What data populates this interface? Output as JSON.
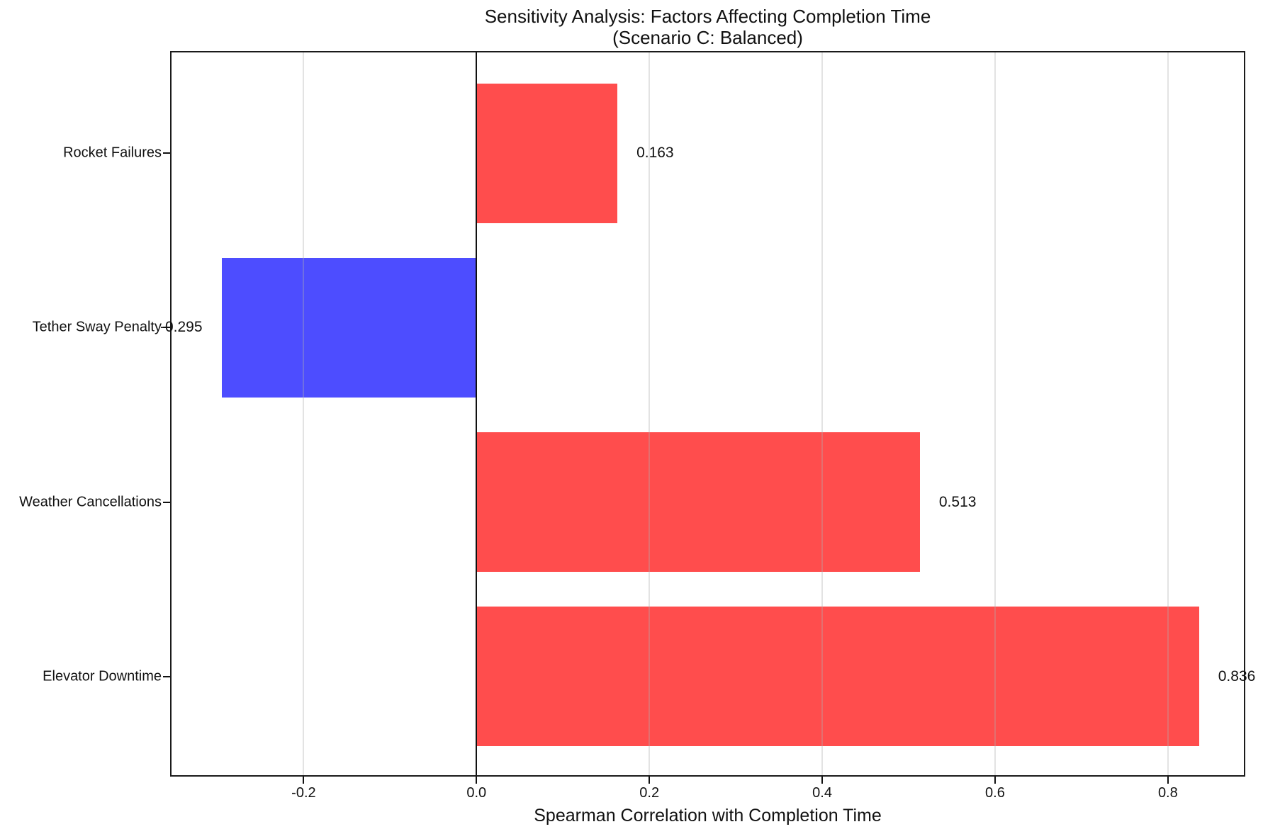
{
  "title": {
    "line1": "Sensitivity Analysis: Factors Affecting Completion Time",
    "line2": "(Scenario C: Balanced)"
  },
  "chart_data": {
    "type": "bar",
    "orientation": "horizontal",
    "title": "Sensitivity Analysis: Factors Affecting Completion Time\n(Scenario C: Balanced)",
    "xlabel": "Spearman Correlation with Completion Time",
    "ylabel": "",
    "categories_top_to_bottom": [
      "Rocket Failures",
      "Tether Sway Penalty",
      "Weather Cancellations",
      "Elevator Downtime"
    ],
    "values_top_to_bottom": [
      0.163,
      -0.295,
      0.513,
      0.836
    ],
    "value_labels_top_to_bottom": [
      "0.163",
      "-0.295",
      "0.513",
      "0.836"
    ],
    "bar_colors_top_to_bottom": [
      "#ff4d4d",
      "#4d4dff",
      "#ff4d4d",
      "#ff4d4d"
    ],
    "positive_color": "#ff4d4d",
    "negative_color": "#4d4dff",
    "xticks": [
      -0.2,
      0.0,
      0.2,
      0.4,
      0.6,
      0.8
    ],
    "xtick_labels": [
      "-0.2",
      "0.0",
      "0.2",
      "0.4",
      "0.6",
      "0.8"
    ],
    "xlim": [
      -0.3545,
      0.8895
    ],
    "bar_height_fraction": 0.8,
    "grid": true,
    "grid_on_top_of_bars": true,
    "zero_line": true,
    "legend": "none",
    "axis_color": "#1a1a1a",
    "grid_color": "#b0b0b0",
    "background_color": "#ffffff"
  }
}
